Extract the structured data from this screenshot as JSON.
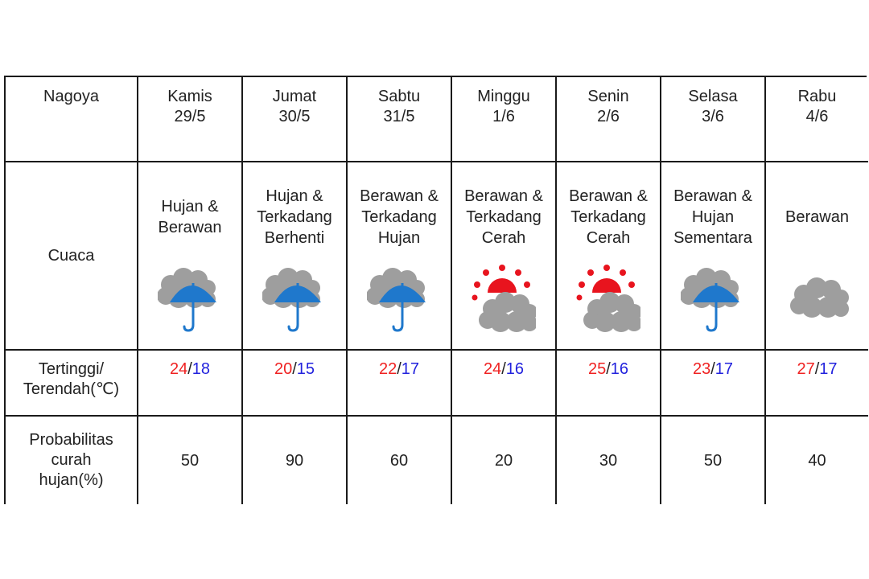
{
  "table": {
    "city": "Nagoya",
    "row_labels": {
      "weather": "Cuaca",
      "temp": [
        "Tertinggi/",
        "Terendah(℃)"
      ],
      "prob": [
        "Probabilitas",
        "curah",
        "hujan(%)"
      ]
    },
    "days": [
      {
        "day": "Kamis",
        "date": "29/5",
        "weather_lines": [
          "Hujan &",
          "Berawan"
        ],
        "icon": "cloud-umbrella-icon",
        "high": "24",
        "low": "18",
        "prob": "50"
      },
      {
        "day": "Jumat",
        "date": "30/5",
        "weather_lines": [
          "Hujan &",
          "Terkadang",
          "Berhenti"
        ],
        "icon": "cloud-umbrella-icon",
        "high": "20",
        "low": "15",
        "prob": "90"
      },
      {
        "day": "Sabtu",
        "date": "31/5",
        "weather_lines": [
          "Berawan &",
          "Terkadang",
          "Hujan"
        ],
        "icon": "cloud-umbrella-icon",
        "high": "22",
        "low": "17",
        "prob": "60"
      },
      {
        "day": "Minggu",
        "date": "1/6",
        "weather_lines": [
          "Berawan &",
          "Terkadang",
          "Cerah"
        ],
        "icon": "sun-cloud-icon",
        "high": "24",
        "low": "16",
        "prob": "20"
      },
      {
        "day": "Senin",
        "date": "2/6",
        "weather_lines": [
          "Berawan &",
          "Terkadang",
          "Cerah"
        ],
        "icon": "sun-cloud-icon",
        "high": "25",
        "low": "16",
        "prob": "30"
      },
      {
        "day": "Selasa",
        "date": "3/6",
        "weather_lines": [
          "Berawan &",
          "Hujan",
          "Sementara"
        ],
        "icon": "cloud-umbrella-icon",
        "high": "23",
        "low": "17",
        "prob": "50"
      },
      {
        "day": "Rabu",
        "date": "4/6",
        "weather_lines": [
          "Berawan"
        ],
        "icon": "cloud-icon",
        "high": "27",
        "low": "17",
        "prob": "40"
      }
    ]
  },
  "colors": {
    "high_temp": "#ef2222",
    "low_temp": "#2222dd",
    "cloud": "#9e9e9e",
    "umbrella": "#1f78cc",
    "sun": "#e8141e"
  }
}
